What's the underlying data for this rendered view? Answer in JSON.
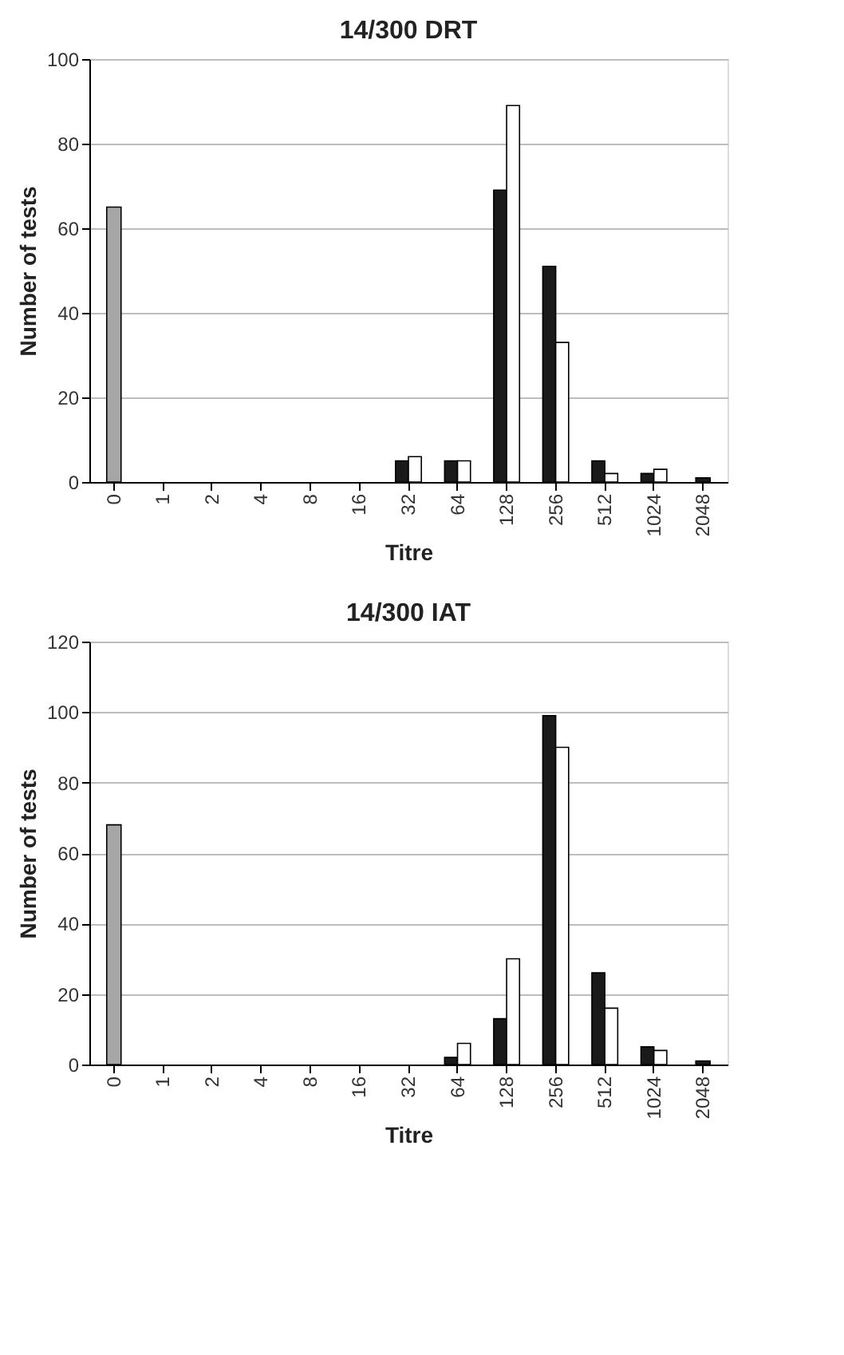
{
  "chart_data": [
    {
      "type": "bar",
      "title": "14/300 DRT",
      "xlabel": "Titre",
      "ylabel": "Number of tests",
      "categories": [
        "0",
        "1",
        "2",
        "4",
        "8",
        "16",
        "32",
        "64",
        "128",
        "256",
        "512",
        "1024",
        "2048"
      ],
      "ylim": [
        0,
        100
      ],
      "yticks": [
        0,
        20,
        40,
        60,
        80,
        100
      ],
      "grid": "y",
      "series": [
        {
          "color": "#a6a6a6",
          "values": [
            65,
            null,
            null,
            null,
            null,
            null,
            null,
            null,
            null,
            null,
            null,
            null,
            null
          ]
        },
        {
          "color": "#1a1a1a",
          "values": [
            null,
            null,
            null,
            null,
            null,
            null,
            5,
            5,
            69,
            51,
            5,
            2,
            1
          ]
        },
        {
          "color": "#ffffff",
          "values": [
            null,
            null,
            null,
            null,
            null,
            null,
            6,
            5,
            89,
            33,
            2,
            3,
            null
          ]
        }
      ]
    },
    {
      "type": "bar",
      "title": "14/300 IAT",
      "xlabel": "Titre",
      "ylabel": "Number of tests",
      "categories": [
        "0",
        "1",
        "2",
        "4",
        "8",
        "16",
        "32",
        "64",
        "128",
        "256",
        "512",
        "1024",
        "2048"
      ],
      "ylim": [
        0,
        120
      ],
      "yticks": [
        0,
        20,
        40,
        60,
        80,
        100,
        120
      ],
      "grid": "y",
      "series": [
        {
          "color": "#a6a6a6",
          "values": [
            68,
            null,
            null,
            null,
            null,
            null,
            null,
            null,
            null,
            null,
            null,
            null,
            null
          ]
        },
        {
          "color": "#1a1a1a",
          "values": [
            null,
            null,
            null,
            null,
            null,
            null,
            null,
            2,
            13,
            99,
            26,
            5,
            1
          ]
        },
        {
          "color": "#ffffff",
          "values": [
            null,
            null,
            null,
            null,
            null,
            null,
            null,
            6,
            30,
            90,
            16,
            4,
            null
          ]
        }
      ]
    }
  ]
}
